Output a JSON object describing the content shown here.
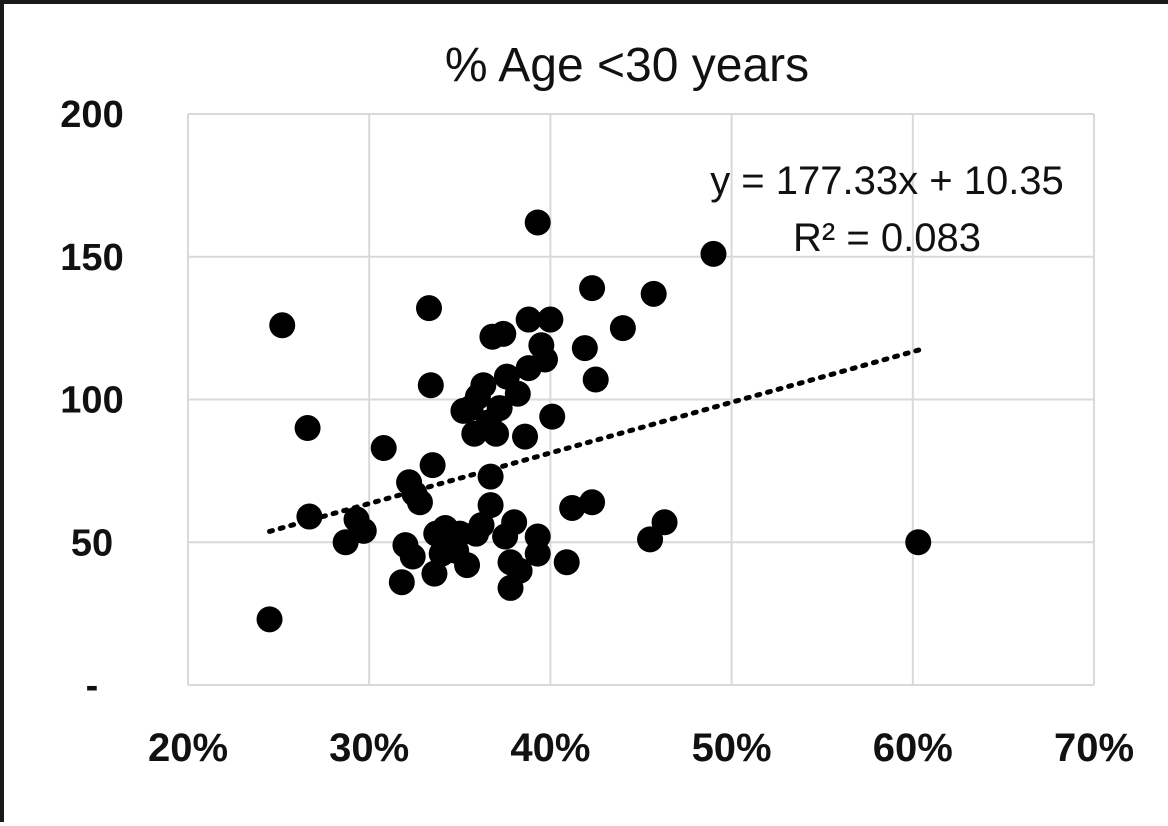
{
  "chart_data": {
    "type": "scatter",
    "title": "% Age <30 years",
    "xlabel": "",
    "ylabel": "",
    "xlim": [
      0.2,
      0.7
    ],
    "ylim": [
      0,
      200
    ],
    "x_ticks": [
      {
        "value": 0.2,
        "label": "20%"
      },
      {
        "value": 0.3,
        "label": "30%"
      },
      {
        "value": 0.4,
        "label": "40%"
      },
      {
        "value": 0.5,
        "label": "50%"
      },
      {
        "value": 0.6,
        "label": "60%"
      },
      {
        "value": 0.7,
        "label": "70%"
      }
    ],
    "y_ticks": [
      {
        "value": 0,
        "label": "-"
      },
      {
        "value": 50,
        "label": "50"
      },
      {
        "value": 100,
        "label": "100"
      },
      {
        "value": 150,
        "label": "150"
      },
      {
        "value": 200,
        "label": "200"
      }
    ],
    "grid": true,
    "points": [
      [
        0.245,
        23
      ],
      [
        0.252,
        126
      ],
      [
        0.266,
        90
      ],
      [
        0.267,
        59
      ],
      [
        0.287,
        50
      ],
      [
        0.293,
        58
      ],
      [
        0.297,
        54
      ],
      [
        0.308,
        83
      ],
      [
        0.318,
        36
      ],
      [
        0.32,
        49
      ],
      [
        0.322,
        71
      ],
      [
        0.324,
        45
      ],
      [
        0.325,
        67
      ],
      [
        0.328,
        64
      ],
      [
        0.333,
        132
      ],
      [
        0.334,
        105
      ],
      [
        0.335,
        77
      ],
      [
        0.336,
        39
      ],
      [
        0.337,
        53
      ],
      [
        0.34,
        46
      ],
      [
        0.342,
        55
      ],
      [
        0.345,
        50
      ],
      [
        0.348,
        47
      ],
      [
        0.35,
        53
      ],
      [
        0.352,
        96
      ],
      [
        0.354,
        42
      ],
      [
        0.356,
        97
      ],
      [
        0.358,
        88
      ],
      [
        0.359,
        53
      ],
      [
        0.36,
        101
      ],
      [
        0.362,
        56
      ],
      [
        0.363,
        105
      ],
      [
        0.366,
        92
      ],
      [
        0.367,
        63
      ],
      [
        0.367,
        73
      ],
      [
        0.368,
        122
      ],
      [
        0.37,
        88
      ],
      [
        0.372,
        97
      ],
      [
        0.374,
        123
      ],
      [
        0.375,
        52
      ],
      [
        0.376,
        108
      ],
      [
        0.378,
        43
      ],
      [
        0.378,
        34
      ],
      [
        0.38,
        57
      ],
      [
        0.382,
        102
      ],
      [
        0.383,
        40
      ],
      [
        0.386,
        87
      ],
      [
        0.388,
        128
      ],
      [
        0.388,
        111
      ],
      [
        0.393,
        162
      ],
      [
        0.393,
        46
      ],
      [
        0.393,
        52
      ],
      [
        0.395,
        119
      ],
      [
        0.397,
        114
      ],
      [
        0.4,
        128
      ],
      [
        0.401,
        94
      ],
      [
        0.409,
        43
      ],
      [
        0.412,
        62
      ],
      [
        0.419,
        118
      ],
      [
        0.423,
        64
      ],
      [
        0.423,
        139
      ],
      [
        0.425,
        107
      ],
      [
        0.44,
        125
      ],
      [
        0.455,
        51
      ],
      [
        0.457,
        137
      ],
      [
        0.463,
        57
      ],
      [
        0.49,
        151
      ],
      [
        0.603,
        50
      ]
    ],
    "trendline": {
      "style": "dotted",
      "slope": 177.33,
      "intercept": 10.35,
      "x_range": [
        0.245,
        0.605
      ]
    },
    "annotations": {
      "equation": "y = 177.33x + 10.35",
      "r_squared": "R² = 0.083"
    }
  }
}
